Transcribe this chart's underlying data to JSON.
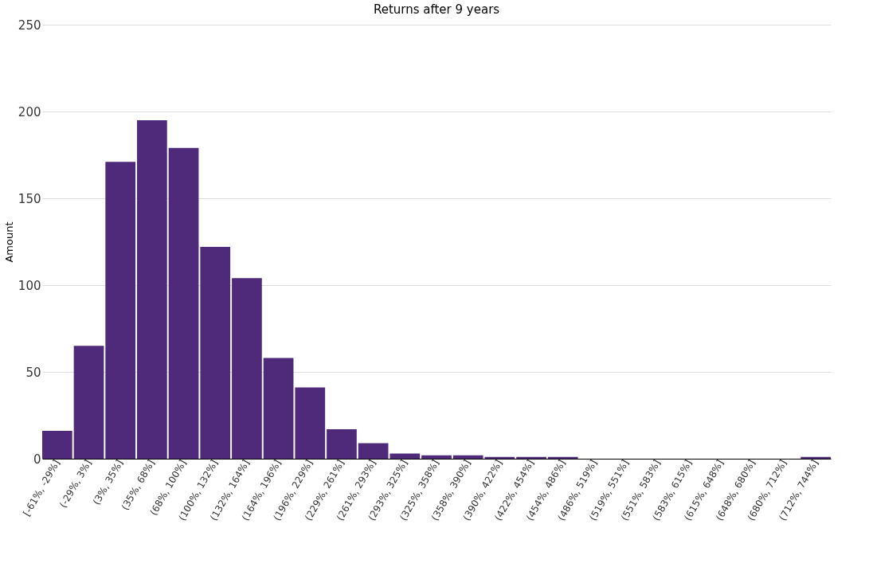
{
  "chart_data": {
    "type": "bar",
    "title": "Returns after 9 years",
    "ylabel": "Amount",
    "categories": [
      "[-61%, -29%]",
      "(-29%, 3%]",
      "(3%, 35%]",
      "(35%, 68%]",
      "(68%, 100%]",
      "(100%, 132%]",
      "(132%, 164%]",
      "(164%, 196%]",
      "(196%, 229%]",
      "(229%, 261%]",
      "(261%, 293%]",
      "(293%, 325%]",
      "(325%, 358%]",
      "(358%, 390%]",
      "(390%, 422%]",
      "(422%, 454%]",
      "(454%, 486%]",
      "(486%, 519%]",
      "(519%, 551%]",
      "(551%, 583%]",
      "(583%, 615%]",
      "(615%, 648%]",
      "(648%, 680%]",
      "(680%, 712%]",
      "(712%, 744%]"
    ],
    "values": [
      16,
      65,
      171,
      195,
      179,
      122,
      104,
      58,
      41,
      17,
      9,
      3,
      2,
      2,
      1,
      1,
      1,
      0,
      0,
      0,
      0,
      0,
      0,
      0,
      1
    ],
    "color": "#4f2a7a",
    "ylim": [
      0,
      250
    ],
    "yticks": [
      0,
      50,
      100,
      150,
      200,
      250
    ],
    "grid": "y"
  }
}
